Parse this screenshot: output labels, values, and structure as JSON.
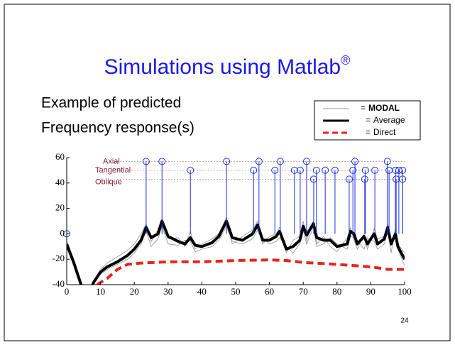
{
  "chart_data": {
    "type": "line",
    "title": "Simulations using Matlab",
    "title_superscript": "®",
    "text_lines": [
      "Example of predicted",
      "Frequency response(s)"
    ],
    "page_number": "24",
    "legend_equals": "=",
    "xlim": [
      0,
      100
    ],
    "ylim": [
      -40,
      60
    ],
    "xticks": [
      0,
      10,
      20,
      30,
      40,
      50,
      60,
      70,
      80,
      90,
      100
    ],
    "yticks": [
      -40,
      -20,
      0,
      20,
      40,
      60
    ],
    "mode_levels": [
      {
        "label": "Axial",
        "value": 57
      },
      {
        "label": "Tangential",
        "value": 50
      },
      {
        "label": "Oblique",
        "value": 43
      }
    ],
    "modal": {
      "name": "MODAL",
      "color": "#9a9a9a",
      "x": [
        0,
        2,
        4,
        5,
        7,
        8,
        10,
        12,
        15,
        18,
        20,
        22,
        23.5,
        25,
        27,
        28.2,
        30,
        33,
        35,
        36.6,
        38,
        40,
        43,
        45,
        47.3,
        49,
        52,
        55,
        56.5,
        58,
        60,
        62,
        63,
        65,
        67,
        69,
        70,
        71,
        73,
        74,
        76,
        78,
        80,
        83,
        84,
        85,
        86,
        88,
        89,
        91,
        92,
        94,
        95,
        96,
        97.3,
        98,
        100
      ],
      "runs": [
        [
          null,
          null,
          null,
          null,
          null,
          null,
          -28,
          -23,
          -18,
          -13,
          -8,
          0,
          8,
          -6,
          3,
          12,
          -4,
          -3,
          -10,
          2,
          -12,
          -8,
          -4,
          0,
          13,
          -8,
          -2,
          3,
          10,
          -8,
          -2,
          0,
          5,
          -15,
          -5,
          -2,
          10,
          -5,
          10,
          -8,
          -2,
          -10,
          -14,
          -3,
          5,
          -5,
          -12,
          0,
          -12,
          4,
          -4,
          -2,
          8,
          -15,
          5,
          -12,
          -25
        ],
        [
          null,
          null,
          null,
          null,
          null,
          null,
          -32,
          -28,
          -24,
          -20,
          -15,
          -8,
          2,
          -10,
          -4,
          6,
          -8,
          -9,
          -5,
          -6,
          -14,
          -12,
          -10,
          -5,
          6,
          -6,
          -8,
          -4,
          3,
          -3,
          -8,
          -6,
          -3,
          -10,
          -15,
          -8,
          3,
          -8,
          5,
          -10,
          -8,
          -3,
          -8,
          -12,
          -2,
          -3,
          -5,
          -12,
          -3,
          -6,
          -12,
          -8,
          2,
          -5,
          -3,
          -8,
          -15
        ]
      ]
    },
    "average": {
      "name": "Average",
      "color": "#000000",
      "x": [
        0,
        2,
        4,
        5,
        7,
        8,
        10,
        12,
        15,
        18,
        20,
        22,
        23.5,
        25,
        27,
        28.2,
        30,
        33,
        35,
        36.6,
        38,
        40,
        43,
        45,
        47.3,
        49,
        52,
        55,
        56.5,
        58,
        60,
        62,
        63,
        65,
        67,
        69,
        70,
        71,
        73,
        74,
        76,
        78,
        80,
        83,
        84,
        85,
        86,
        88,
        89,
        91,
        92,
        94,
        95,
        96,
        97.3,
        98,
        100
      ],
      "values": [
        -8,
        -22,
        -38,
        -46,
        -44,
        -38,
        -30,
        -26,
        -22,
        -17,
        -12,
        -5,
        5,
        -3,
        0,
        10,
        -2,
        -6,
        -8,
        -3,
        -9,
        -10,
        -7,
        -2,
        10,
        -3,
        -5,
        0,
        7,
        -5,
        -5,
        -2,
        2,
        -12,
        -10,
        -5,
        6,
        -1,
        8,
        -3,
        -5,
        -5,
        -10,
        -8,
        2,
        0,
        -8,
        -2,
        -8,
        0,
        -8,
        -4,
        5,
        -8,
        0,
        -10,
        -20
      ]
    },
    "direct": {
      "name": "Direct",
      "color": "#e8231c",
      "x": [
        9,
        12,
        15,
        18,
        22,
        30,
        40,
        50,
        60,
        65,
        70,
        80,
        90,
        95,
        100
      ],
      "values": [
        -40,
        -35,
        -28,
        -24,
        -23,
        -22,
        -22,
        -21,
        -20.5,
        -21,
        -22.5,
        -24,
        -26,
        -28,
        -28
      ]
    },
    "modes": {
      "color": "#1f2fe0",
      "x": [
        0,
        23.5,
        28.2,
        36.6,
        47.3,
        55.3,
        56.9,
        61.6,
        63.2,
        67.4,
        69.1,
        71.0,
        73.1,
        73.9,
        76.5,
        79.4,
        83.6,
        84.7,
        85.3,
        88.2,
        88.4,
        91.2,
        94.9,
        95.4,
        97.3,
        97.5,
        98.3,
        99.4,
        99.4
      ],
      "y": [
        0,
        57,
        57,
        50,
        57,
        50,
        57,
        50,
        57,
        50,
        50,
        57,
        43,
        50,
        50,
        50,
        43,
        50,
        57,
        43,
        50,
        50,
        57,
        50,
        50,
        43,
        50,
        50,
        43
      ]
    }
  }
}
